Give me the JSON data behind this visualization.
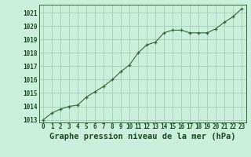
{
  "x": [
    0,
    1,
    2,
    3,
    4,
    5,
    6,
    7,
    8,
    9,
    10,
    11,
    12,
    13,
    14,
    15,
    16,
    17,
    18,
    19,
    20,
    21,
    22,
    23
  ],
  "y": [
    1013.0,
    1013.5,
    1013.8,
    1014.0,
    1014.1,
    1014.7,
    1015.1,
    1015.5,
    1016.0,
    1016.6,
    1017.1,
    1018.0,
    1018.6,
    1018.8,
    1019.5,
    1019.7,
    1019.7,
    1019.5,
    1019.5,
    1019.5,
    1019.8,
    1020.3,
    1020.7,
    1021.3
  ],
  "ylim_min": 1012.8,
  "ylim_max": 1021.6,
  "xlim_min": -0.5,
  "xlim_max": 23.5,
  "yticks": [
    1013,
    1014,
    1015,
    1016,
    1017,
    1018,
    1019,
    1020,
    1021
  ],
  "xticks": [
    0,
    1,
    2,
    3,
    4,
    5,
    6,
    7,
    8,
    9,
    10,
    11,
    12,
    13,
    14,
    15,
    16,
    17,
    18,
    19,
    20,
    21,
    22,
    23
  ],
  "xlabel": "Graphe pression niveau de la mer (hPa)",
  "line_color": "#2d6e2d",
  "marker_color": "#2d6e2d",
  "bg_color": "#cceedd",
  "grid_color": "#aaccbb",
  "label_color": "#1a4d1a",
  "tick_fontsize": 5.5,
  "xlabel_fontsize": 7.5
}
